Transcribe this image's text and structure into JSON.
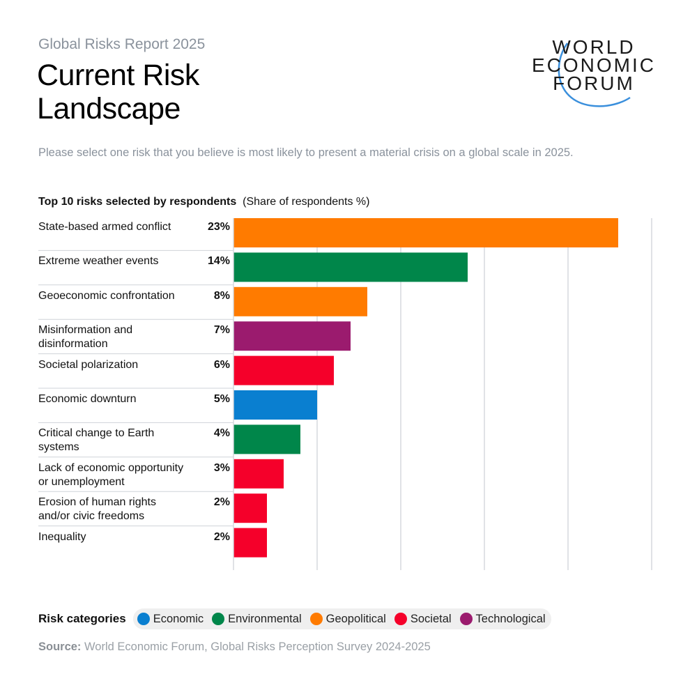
{
  "header": {
    "report": "Global Risks Report 2025",
    "title_line1": "Current Risk",
    "title_line2": "Landscape",
    "logo": [
      "WORLD",
      "ECONOMIC",
      "FORUM"
    ]
  },
  "question": "Please select one risk that you believe is most likely to present a material crisis on a global scale in 2025.",
  "colors": {
    "Economic": "#0a7fd0",
    "Environmental": "#00864a",
    "Geopolitical": "#ff7b00",
    "Societal": "#f5002a",
    "Technological": "#9b1b6e"
  },
  "chart_data": {
    "type": "bar",
    "orientation": "horizontal",
    "title": "Top 10 risks selected by respondents",
    "subtitle": "(Share of respondents %)",
    "xlim": [
      0,
      25
    ],
    "grid": true,
    "categories": [
      "State-based armed conflict",
      "Extreme weather events",
      "Geoeconomic confrontation",
      "Misinformation and disinformation",
      "Societal polarization",
      "Economic downturn",
      "Critical change to Earth systems",
      "Lack of economic opportunity or unemployment",
      "Erosion of human rights and/or civic freedoms",
      "Inequality"
    ],
    "label_lines": [
      [
        "State-based armed conflict"
      ],
      [
        "Extreme weather events"
      ],
      [
        "Geoeconomic confrontation"
      ],
      [
        "Misinformation and",
        "disinformation"
      ],
      [
        "Societal polarization"
      ],
      [
        "Economic downturn"
      ],
      [
        "Critical change to Earth",
        "systems"
      ],
      [
        "Lack of economic opportunity",
        "or unemployment"
      ],
      [
        "Erosion of human rights",
        "and/or civic freedoms"
      ],
      [
        "Inequality"
      ]
    ],
    "values": [
      23,
      14,
      8,
      7,
      6,
      5,
      4,
      3,
      2,
      2
    ],
    "value_labels": [
      "23%",
      "14%",
      "8%",
      "7%",
      "6%",
      "5%",
      "4%",
      "3%",
      "2%",
      "2%"
    ],
    "bar_categories": [
      "Geopolitical",
      "Environmental",
      "Geopolitical",
      "Technological",
      "Societal",
      "Economic",
      "Environmental",
      "Societal",
      "Societal",
      "Societal"
    ]
  },
  "legend": {
    "title": "Risk categories",
    "items": [
      "Economic",
      "Environmental",
      "Geopolitical",
      "Societal",
      "Technological"
    ]
  },
  "source": {
    "label": "Source:",
    "text": " World Economic Forum, Global Risks Perception Survey 2024-2025"
  }
}
